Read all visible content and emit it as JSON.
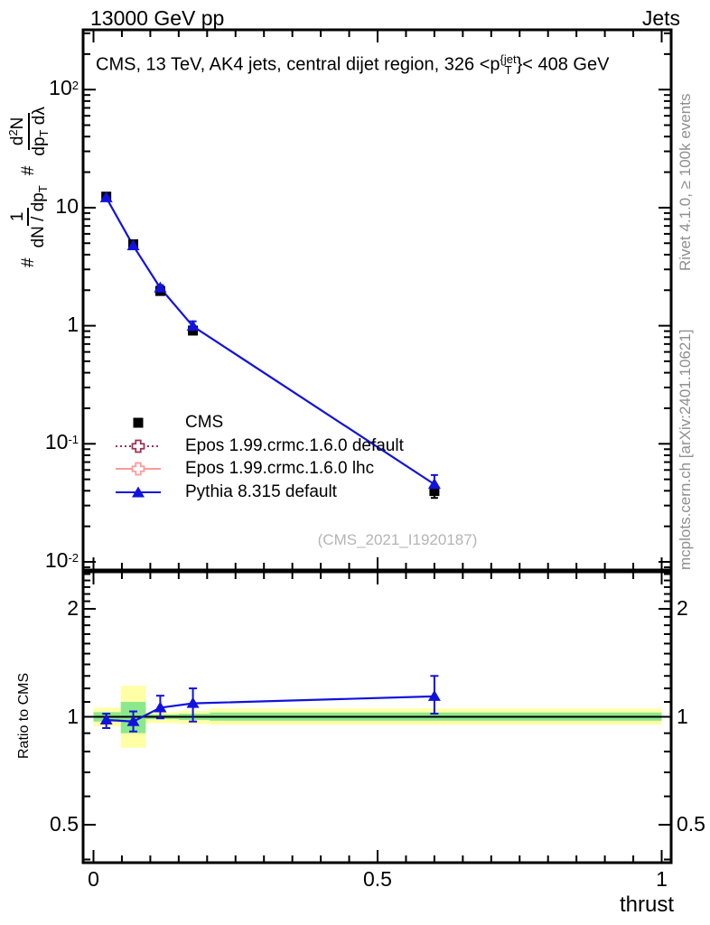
{
  "header": {
    "left": "13000 GeV pp",
    "right": "Jets"
  },
  "title": {
    "prefix": "CMS, 13 TeV, AK4 jets, central dijet region, 326 <p",
    "sup": "{jet",
    "sub": "T",
    "suffix": "}< 408 GeV"
  },
  "credits": {
    "rivet": "Rivet 4.1.0, ≥ 100k events",
    "mcplots": "mcplots.cern.ch [arXiv:2401.10621]"
  },
  "watermark": "(CMS_2021_I1920187)",
  "ylabel_main": {
    "hash1": "#",
    "f1num": "1",
    "f1den_a": "dN / dp",
    "f1den_sub": "T",
    "hash2": "#",
    "f2num_a": "d",
    "f2num_sup": "2",
    "f2num_b": "N",
    "f2den_a": "dp",
    "f2den_sub": "T",
    "f2den_b": " dλ"
  },
  "axes": {
    "x": {
      "label": "thrust",
      "min": -0.018,
      "max": 1.018,
      "major": [
        {
          "v": 0,
          "t": "0"
        },
        {
          "v": 0.5,
          "t": "0.5"
        },
        {
          "v": 1,
          "t": "1"
        }
      ],
      "minor_step": 0.05
    },
    "y_main": {
      "scale": "log",
      "min": 0.0085,
      "max": 320,
      "ticks": [
        {
          "v": 100,
          "base": "10",
          "exp": "2"
        },
        {
          "v": 10,
          "base": "10",
          "exp": ""
        },
        {
          "v": 1,
          "base": "1",
          "exp": ""
        },
        {
          "v": 0.1,
          "base": "10",
          "exp": "-1"
        },
        {
          "v": 0.01,
          "base": "10",
          "exp": "-2"
        }
      ]
    },
    "y_ratio": {
      "label": "Ratio to CMS",
      "scale": "log",
      "min": 0.4,
      "max": 2.55,
      "ticks": [
        {
          "v": 2,
          "t": "2"
        },
        {
          "v": 1,
          "t": "1"
        },
        {
          "v": 0.5,
          "t": "0.5"
        }
      ]
    }
  },
  "colors": {
    "cms": "#000000",
    "pythia": "#1212dd",
    "epos_default": "#993355",
    "epos_lhc": "#ff9999",
    "band_yellow": "#ffffa6",
    "band_green": "#8ce88c",
    "gray_text": "#8f8f8f",
    "watermark": "#b5b5b5"
  },
  "legend": {
    "items": [
      {
        "label": "CMS",
        "marker": "square",
        "line": "none",
        "color": "#000000"
      },
      {
        "label": "Epos 1.99.crmc.1.6.0 default",
        "marker": "cross",
        "line": "dotted",
        "color": "#993355"
      },
      {
        "label": "Epos 1.99.crmc.1.6.0 lhc",
        "marker": "cross",
        "line": "solid",
        "color": "#ff9999"
      },
      {
        "label": "Pythia 8.315 default",
        "marker": "triangle",
        "line": "solid",
        "color": "#1212dd"
      }
    ]
  },
  "chart_data": {
    "type": "line",
    "title": "CMS, 13 TeV, AK4 jets, central dijet region, 326 < pT^{jet} < 408 GeV",
    "xlabel": "thrust",
    "ylabel": "# 1/(dN/dpT) d2N/(dpT dλ)",
    "x_range": [
      -0.018,
      1.018
    ],
    "y_main_range": [
      0.0085,
      320
    ],
    "y_main_scale": "log",
    "grid": false,
    "legend_position": "middle-left",
    "x": [
      0.0225,
      0.07,
      0.1175,
      0.175,
      0.6
    ],
    "bin_edges": [
      0,
      0.048,
      0.092,
      0.15,
      0.205,
      1.0
    ],
    "series": [
      {
        "name": "CMS",
        "marker": "square",
        "color": "#000000",
        "values": [
          12.4,
          4.9,
          1.97,
          0.91,
          0.0398
        ],
        "yerr_lo": [
          0.5,
          0.2,
          0.09,
          0.05,
          0.005
        ],
        "yerr_hi": [
          0.5,
          0.2,
          0.09,
          0.05,
          0.005
        ]
      },
      {
        "name": "Pythia 8.315 default",
        "marker": "triangle",
        "color": "#1212dd",
        "values": [
          12.15,
          4.76,
          2.09,
          0.99,
          0.0454
        ],
        "yerr_lo": [
          0.4,
          0.2,
          0.12,
          0.09,
          0.005
        ],
        "yerr_hi": [
          0.4,
          0.2,
          0.12,
          0.1,
          0.009
        ]
      }
    ],
    "legend_only_series": [
      "Epos 1.99.crmc.1.6.0 default",
      "Epos 1.99.crmc.1.6.0 lhc"
    ],
    "ratio": {
      "ylabel": "Ratio to CMS",
      "reference": "CMS",
      "scale": "log",
      "y_range": [
        0.4,
        2.55
      ],
      "x": [
        0.0225,
        0.07,
        0.1175,
        0.175,
        0.6
      ],
      "values": [
        0.98,
        0.97,
        1.06,
        1.09,
        1.14
      ],
      "yerr_lo": [
        0.05,
        0.06,
        0.07,
        0.12,
        0.12
      ],
      "yerr_hi": [
        0.04,
        0.065,
        0.085,
        0.11,
        0.16
      ],
      "bands": [
        {
          "x0": 0.0,
          "x1": 0.048,
          "yellow": [
            0.94,
            1.06
          ],
          "green": [
            0.97,
            1.03
          ]
        },
        {
          "x0": 0.048,
          "x1": 0.092,
          "yellow": [
            0.82,
            1.22
          ],
          "green": [
            0.9,
            1.1
          ]
        },
        {
          "x0": 0.092,
          "x1": 0.15,
          "yellow": [
            0.96,
            1.03
          ],
          "green": [
            0.985,
            1.015
          ]
        },
        {
          "x0": 0.15,
          "x1": 0.205,
          "yellow": [
            0.955,
            1.04
          ],
          "green": [
            0.98,
            1.02
          ]
        },
        {
          "x0": 0.205,
          "x1": 1.0,
          "yellow": [
            0.95,
            1.055
          ],
          "green": [
            0.975,
            1.028
          ]
        }
      ]
    }
  }
}
